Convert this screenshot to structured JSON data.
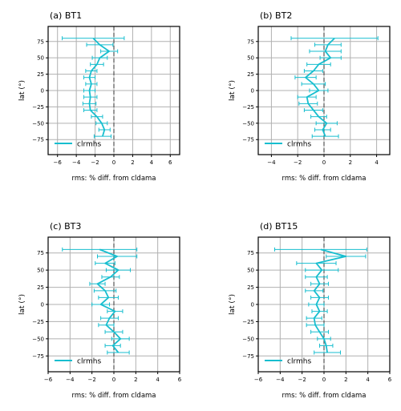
{
  "figure": {
    "colors": {
      "series": "#17becf",
      "grid": "#b0b0b0",
      "zero_line": "#555555",
      "axes": "#000000"
    }
  },
  "chart_data": [
    {
      "type": "line",
      "title": "(a) BT1",
      "xlabel": "rms: % diff. from cldama",
      "ylabel": "lat (°)",
      "xlim": [
        -7,
        7
      ],
      "ylim": [
        -98,
        98
      ],
      "xticks": [
        -6,
        -4,
        -2,
        0,
        2,
        4,
        6
      ],
      "yticks": [
        -75,
        -50,
        -25,
        0,
        25,
        50,
        75
      ],
      "grid": true,
      "zero_line": 0,
      "legend": {
        "position": "lower-left",
        "entries": [
          "clrmhs"
        ]
      },
      "series": [
        {
          "name": "clrmhs",
          "lat": [
            80,
            70,
            60,
            50,
            40,
            30,
            20,
            10,
            0,
            -10,
            -20,
            -30,
            -40,
            -50,
            -60,
            -70
          ],
          "value": [
            -2.2,
            -1.5,
            -0.5,
            -1.5,
            -1.8,
            -2.4,
            -2.6,
            -2.4,
            -2.6,
            -2.5,
            -2.6,
            -2.5,
            -1.8,
            -1.3,
            -1.0,
            -1.2
          ],
          "err": [
            3.3,
            1.4,
            0.9,
            0.8,
            0.7,
            0.6,
            0.6,
            0.6,
            0.6,
            0.7,
            0.7,
            0.7,
            0.6,
            0.6,
            0.6,
            0.9
          ]
        }
      ]
    },
    {
      "type": "line",
      "title": "(b) BT2",
      "xlabel": "rms: % diff. from cldama",
      "ylabel": "lat (°)",
      "xlim": [
        -5,
        5
      ],
      "ylim": [
        -98,
        98
      ],
      "xticks": [
        -4,
        -2,
        0,
        2,
        4
      ],
      "yticks": [
        -75,
        -50,
        -25,
        0,
        25,
        50,
        75
      ],
      "grid": true,
      "zero_line": 0,
      "legend": {
        "position": "lower-left",
        "entries": [
          "clrmhs"
        ]
      },
      "series": [
        {
          "name": "clrmhs",
          "lat": [
            80,
            70,
            60,
            50,
            40,
            30,
            20,
            10,
            0,
            -10,
            -20,
            -30,
            -40,
            -50,
            -60,
            -70
          ],
          "value": [
            0.8,
            0.3,
            0.1,
            0.5,
            -0.4,
            -0.8,
            -1.4,
            -0.8,
            -0.4,
            -1.3,
            -1.2,
            -0.8,
            -0.4,
            0.2,
            -0.1,
            0.1
          ],
          "err": [
            3.3,
            1.0,
            1.2,
            0.8,
            0.9,
            0.7,
            0.8,
            0.9,
            0.7,
            0.7,
            0.7,
            0.7,
            0.6,
            0.8,
            0.6,
            1.0
          ]
        }
      ]
    },
    {
      "type": "line",
      "title": "(c) BT3",
      "xlabel": "rms: % diff. from cldama",
      "ylabel": "lat (°)",
      "xlim": [
        -6,
        6
      ],
      "ylim": [
        -98,
        98
      ],
      "xticks": [
        -6,
        -4,
        -2,
        0,
        2,
        4,
        6
      ],
      "yticks": [
        -75,
        -50,
        -25,
        0,
        25,
        50,
        75
      ],
      "grid": true,
      "zero_line": 0,
      "legend": {
        "position": "lower-left",
        "entries": [
          "clrmhs"
        ]
      },
      "series": [
        {
          "name": "clrmhs",
          "lat": [
            80,
            70,
            60,
            50,
            40,
            30,
            20,
            10,
            0,
            -10,
            -20,
            -30,
            -40,
            -50,
            -60,
            -70
          ],
          "value": [
            -1.3,
            0.3,
            -0.8,
            0.4,
            -0.3,
            -1.5,
            -0.8,
            -0.5,
            -1.2,
            0.1,
            -0.4,
            -0.7,
            0.0,
            0.6,
            -0.1,
            0.4
          ],
          "err": [
            3.4,
            1.8,
            0.9,
            1.1,
            0.8,
            0.7,
            1.0,
            0.9,
            0.8,
            0.7,
            0.8,
            0.7,
            0.8,
            0.8,
            0.7,
            1.0
          ]
        }
      ]
    },
    {
      "type": "line",
      "title": "(d) BT15",
      "xlabel": "rms: % diff. from cldama",
      "ylabel": "lat (°)",
      "xlim": [
        -6,
        6
      ],
      "ylim": [
        -98,
        98
      ],
      "xticks": [
        -6,
        -4,
        -2,
        0,
        2,
        4,
        6
      ],
      "yticks": [
        -75,
        -50,
        -25,
        0,
        25,
        50,
        75
      ],
      "grid": true,
      "zero_line": 0,
      "legend": {
        "position": "lower-left",
        "entries": [
          "clrmhs"
        ]
      },
      "series": [
        {
          "name": "clrmhs",
          "lat": [
            80,
            70,
            60,
            50,
            40,
            30,
            20,
            10,
            0,
            -10,
            -20,
            -30,
            -40,
            -50,
            -60,
            -70
          ],
          "value": [
            -0.3,
            2.0,
            -0.7,
            -0.2,
            -0.7,
            -0.4,
            -0.9,
            -0.4,
            -0.7,
            -0.4,
            -0.9,
            -0.8,
            -0.4,
            0.0,
            0.2,
            0.3
          ],
          "err": [
            4.2,
            1.8,
            1.8,
            1.5,
            1.0,
            0.8,
            0.8,
            0.8,
            0.7,
            0.7,
            0.7,
            0.8,
            0.8,
            0.6,
            0.6,
            1.2
          ]
        }
      ]
    }
  ]
}
